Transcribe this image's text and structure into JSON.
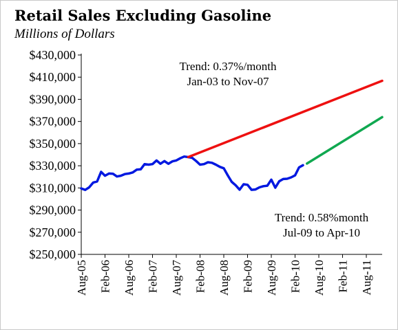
{
  "chart_data": {
    "type": "line",
    "title": "Retail Sales Excluding Gasoline",
    "subtitle": "Millions of Dollars",
    "xlabel": "",
    "ylabel": "",
    "ylim": [
      250000,
      430000
    ],
    "xlim": [
      "2005-08",
      "2011-12"
    ],
    "y_ticks": [
      "$250,000",
      "$270,000",
      "$290,000",
      "$310,000",
      "$330,000",
      "$350,000",
      "$370,000",
      "$390,000",
      "$410,000",
      "$430,000"
    ],
    "x_ticks": [
      "Aug-05",
      "Feb-06",
      "Aug-06",
      "Feb-07",
      "Aug-07",
      "Feb-08",
      "Aug-08",
      "Feb-09",
      "Aug-09",
      "Feb-10",
      "Aug-10",
      "Feb-11",
      "Aug-11"
    ],
    "grid": false,
    "legend": "none",
    "annotations": [
      {
        "lines": [
          "Trend:  0.37%/month",
          "Jan-03 to Nov-07"
        ]
      },
      {
        "lines": [
          "Trend:  0.58%month",
          "Jul-09 to Apr-10"
        ]
      }
    ],
    "series": [
      {
        "color": "#0018e0",
        "x": [
          "2005-08",
          "2005-09",
          "2005-10",
          "2005-11",
          "2005-12",
          "2006-01",
          "2006-02",
          "2006-03",
          "2006-04",
          "2006-05",
          "2006-06",
          "2006-07",
          "2006-08",
          "2006-09",
          "2006-10",
          "2006-11",
          "2006-12",
          "2007-01",
          "2007-02",
          "2007-03",
          "2007-04",
          "2007-05",
          "2007-06",
          "2007-07",
          "2007-08",
          "2007-09",
          "2007-10",
          "2007-11",
          "2007-12",
          "2008-01",
          "2008-02",
          "2008-03",
          "2008-04",
          "2008-05",
          "2008-06",
          "2008-07",
          "2008-08",
          "2008-09",
          "2008-10",
          "2008-11",
          "2008-12",
          "2009-01",
          "2009-02",
          "2009-03",
          "2009-04",
          "2009-05",
          "2009-06",
          "2009-07",
          "2009-08",
          "2009-09",
          "2009-10",
          "2009-11",
          "2009-12",
          "2010-01",
          "2010-02",
          "2010-03",
          "2010-04"
        ],
        "values": [
          309500,
          308200,
          310500,
          314800,
          315800,
          324500,
          321000,
          323000,
          322800,
          320300,
          321000,
          322500,
          323000,
          324000,
          326500,
          326800,
          331500,
          331000,
          331500,
          334800,
          331800,
          334200,
          331800,
          334000,
          334800,
          336800,
          338300,
          337800,
          337200,
          334300,
          331000,
          331500,
          333200,
          332700,
          331000,
          329000,
          327700,
          321300,
          315500,
          312300,
          308400,
          313300,
          312800,
          308300,
          308600,
          310500,
          311600,
          312000,
          317500,
          310200,
          316000,
          318000,
          318300,
          319500,
          321300,
          328500,
          330500
        ]
      },
      {
        "color": "#ee1010",
        "x": [
          "2007-11",
          "2011-12"
        ],
        "values": [
          337800,
          406700
        ]
      },
      {
        "color": "#10a850",
        "x": [
          "2010-05",
          "2011-12"
        ],
        "values": [
          332000,
          373900
        ]
      }
    ]
  }
}
